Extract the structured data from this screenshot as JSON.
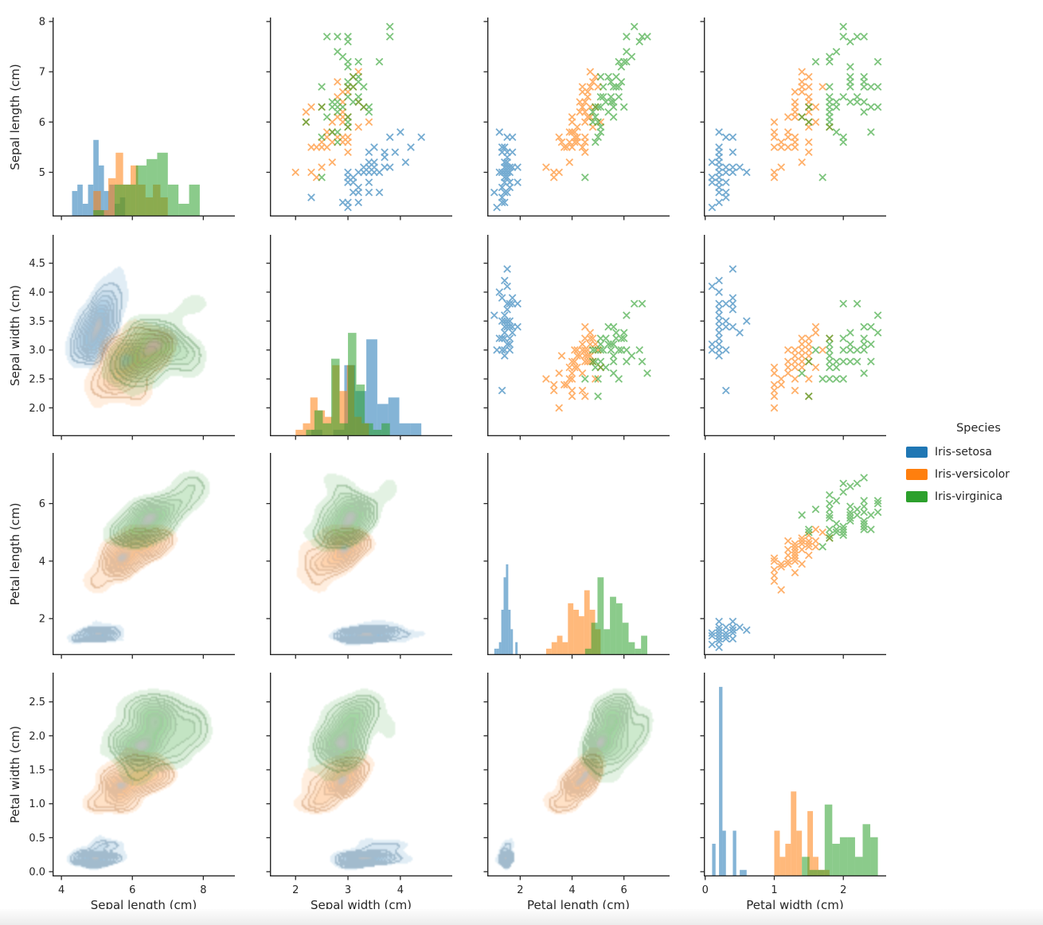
{
  "chart_data": {
    "type": "pairplot",
    "panels": {
      "diagonal": "histogram",
      "upper_triangle": "scatter",
      "lower_triangle": "kde-contours"
    },
    "marker": "x",
    "legend_title": "Species",
    "legend_position": "right-center",
    "grid": false,
    "variables": [
      {
        "key": "sepal_length",
        "label": "Sepal length (cm)",
        "x_range": [
          3.75,
          8.89
        ],
        "x_ticks": [
          4,
          6,
          8
        ],
        "x_tick_labels": [
          "4",
          "6",
          "8"
        ],
        "y_range": [
          4.12,
          8.08
        ],
        "y_ticks": [
          5,
          6,
          7,
          8
        ],
        "y_tick_labels": [
          "5",
          "6",
          "7",
          "8"
        ]
      },
      {
        "key": "sepal_width",
        "label": "Sepal width (cm)",
        "x_range": [
          1.51,
          4.99
        ],
        "x_ticks": [
          2,
          3,
          4
        ],
        "x_tick_labels": [
          "2",
          "3",
          "4"
        ],
        "y_range": [
          1.51,
          4.99
        ],
        "y_ticks": [
          2.0,
          2.5,
          3.0,
          3.5,
          4.0,
          4.5
        ],
        "y_tick_labels": [
          "2.0",
          "2.5",
          "3.0",
          "3.5",
          "4.0",
          "4.5"
        ]
      },
      {
        "key": "petal_length",
        "label": "Petal length (cm)",
        "x_range": [
          0.73,
          7.76
        ],
        "x_ticks": [
          2,
          4,
          6
        ],
        "x_tick_labels": [
          "2",
          "4",
          "6"
        ],
        "y_range": [
          0.73,
          7.76
        ],
        "y_ticks": [
          2,
          4,
          6
        ],
        "y_tick_labels": [
          "2",
          "4",
          "6"
        ]
      },
      {
        "key": "petal_width",
        "label": "Petal width (cm)",
        "x_range": [
          -0.02,
          2.62
        ],
        "x_ticks": [
          0,
          1,
          2
        ],
        "x_tick_labels": [
          "0",
          "1",
          "2"
        ],
        "y_range": [
          -0.07,
          2.93
        ],
        "y_ticks": [
          0.0,
          0.5,
          1.0,
          1.5,
          2.0,
          2.5
        ],
        "y_tick_labels": [
          "0.0",
          "0.5",
          "1.0",
          "1.5",
          "2.0",
          "2.5"
        ]
      }
    ],
    "species": [
      {
        "label": "Iris-setosa",
        "color": "#1f77b4",
        "data": {
          "sepal_length": [
            5.1,
            4.9,
            4.7,
            4.6,
            5.0,
            5.4,
            4.6,
            5.0,
            4.4,
            4.9,
            5.4,
            4.8,
            4.8,
            4.3,
            5.8,
            5.7,
            5.4,
            5.1,
            5.7,
            5.1,
            5.4,
            5.1,
            4.6,
            5.1,
            4.8,
            5.0,
            5.0,
            5.2,
            5.2,
            4.7,
            4.8,
            5.4,
            5.2,
            5.5,
            4.9,
            5.0,
            5.5,
            4.9,
            4.4,
            5.1,
            5.0,
            4.5,
            4.4,
            5.0,
            5.1,
            4.8,
            5.1,
            4.6,
            5.3,
            5.0
          ],
          "sepal_width": [
            3.5,
            3.0,
            3.2,
            3.1,
            3.6,
            3.9,
            3.4,
            3.4,
            2.9,
            3.1,
            3.7,
            3.4,
            3.0,
            3.0,
            4.0,
            4.4,
            3.9,
            3.5,
            3.8,
            3.8,
            3.4,
            3.7,
            3.6,
            3.3,
            3.4,
            3.0,
            3.4,
            3.5,
            3.4,
            3.2,
            3.1,
            3.4,
            4.1,
            4.2,
            3.1,
            3.2,
            3.5,
            3.1,
            3.0,
            3.4,
            3.5,
            2.3,
            3.2,
            3.5,
            3.8,
            3.0,
            3.8,
            3.2,
            3.7,
            3.3
          ],
          "petal_length": [
            1.4,
            1.4,
            1.3,
            1.5,
            1.4,
            1.7,
            1.4,
            1.5,
            1.4,
            1.5,
            1.5,
            1.6,
            1.4,
            1.1,
            1.2,
            1.5,
            1.3,
            1.4,
            1.7,
            1.5,
            1.7,
            1.5,
            1.0,
            1.7,
            1.9,
            1.6,
            1.6,
            1.5,
            1.4,
            1.6,
            1.6,
            1.5,
            1.5,
            1.4,
            1.5,
            1.2,
            1.3,
            1.5,
            1.3,
            1.5,
            1.3,
            1.3,
            1.3,
            1.6,
            1.9,
            1.4,
            1.6,
            1.4,
            1.5,
            1.4
          ],
          "petal_width": [
            0.2,
            0.2,
            0.2,
            0.2,
            0.2,
            0.4,
            0.3,
            0.2,
            0.2,
            0.1,
            0.2,
            0.2,
            0.1,
            0.1,
            0.2,
            0.4,
            0.4,
            0.3,
            0.3,
            0.3,
            0.2,
            0.4,
            0.2,
            0.5,
            0.2,
            0.2,
            0.4,
            0.2,
            0.2,
            0.2,
            0.2,
            0.4,
            0.1,
            0.2,
            0.2,
            0.2,
            0.2,
            0.1,
            0.2,
            0.2,
            0.3,
            0.3,
            0.2,
            0.6,
            0.4,
            0.3,
            0.2,
            0.2,
            0.2,
            0.2
          ]
        }
      },
      {
        "label": "Iris-versicolor",
        "color": "#ff7f0e",
        "data": {
          "sepal_length": [
            7.0,
            6.4,
            6.9,
            5.5,
            6.5,
            5.7,
            6.3,
            4.9,
            6.6,
            5.2,
            5.0,
            5.9,
            6.0,
            6.1,
            5.6,
            6.7,
            5.6,
            5.8,
            6.2,
            5.6,
            5.9,
            6.1,
            6.3,
            6.1,
            6.4,
            6.6,
            6.8,
            6.7,
            6.0,
            5.7,
            5.5,
            5.5,
            5.8,
            6.0,
            5.4,
            6.0,
            6.7,
            6.3,
            5.6,
            5.5,
            5.5,
            6.1,
            5.8,
            5.0,
            5.6,
            5.7,
            5.7,
            6.2,
            5.1,
            5.7
          ],
          "sepal_width": [
            3.2,
            3.2,
            3.1,
            2.3,
            2.8,
            2.8,
            3.3,
            2.4,
            2.9,
            2.7,
            2.0,
            3.0,
            2.2,
            2.9,
            2.9,
            3.1,
            3.0,
            2.7,
            2.2,
            2.5,
            3.2,
            2.8,
            2.5,
            2.8,
            2.9,
            3.0,
            2.8,
            3.0,
            2.9,
            2.6,
            2.4,
            2.4,
            2.7,
            2.7,
            3.0,
            3.4,
            3.1,
            2.3,
            3.0,
            2.5,
            2.6,
            3.0,
            2.6,
            2.3,
            2.7,
            3.0,
            2.9,
            2.9,
            2.5,
            2.8
          ],
          "petal_length": [
            4.7,
            4.5,
            4.9,
            4.0,
            4.6,
            4.5,
            4.7,
            3.3,
            4.6,
            3.9,
            3.5,
            4.2,
            4.0,
            4.7,
            3.6,
            4.4,
            4.5,
            4.1,
            4.5,
            3.9,
            4.8,
            4.0,
            4.9,
            4.7,
            4.3,
            4.4,
            4.8,
            5.0,
            4.5,
            3.5,
            3.8,
            3.7,
            3.9,
            5.1,
            4.5,
            4.5,
            4.7,
            4.4,
            4.1,
            4.0,
            4.4,
            4.6,
            4.0,
            3.3,
            4.2,
            4.2,
            4.2,
            4.3,
            3.0,
            4.1
          ],
          "petal_width": [
            1.4,
            1.5,
            1.5,
            1.3,
            1.5,
            1.3,
            1.6,
            1.0,
            1.3,
            1.4,
            1.0,
            1.5,
            1.0,
            1.4,
            1.3,
            1.4,
            1.5,
            1.0,
            1.5,
            1.1,
            1.8,
            1.3,
            1.5,
            1.2,
            1.3,
            1.4,
            1.4,
            1.7,
            1.5,
            1.0,
            1.1,
            1.0,
            1.2,
            1.6,
            1.5,
            1.6,
            1.5,
            1.3,
            1.3,
            1.3,
            1.2,
            1.4,
            1.2,
            1.0,
            1.3,
            1.2,
            1.3,
            1.3,
            1.1,
            1.3
          ]
        }
      },
      {
        "label": "Iris-virginica",
        "color": "#2ca02c",
        "data": {
          "sepal_length": [
            6.3,
            5.8,
            7.1,
            6.3,
            6.5,
            7.6,
            4.9,
            7.3,
            6.7,
            7.2,
            6.5,
            6.4,
            6.8,
            5.7,
            5.8,
            6.4,
            6.5,
            7.7,
            7.7,
            6.0,
            6.9,
            5.6,
            7.7,
            6.3,
            6.7,
            7.2,
            6.2,
            6.1,
            6.4,
            7.2,
            7.4,
            7.9,
            6.4,
            6.3,
            6.1,
            7.7,
            6.3,
            6.4,
            6.0,
            6.9,
            6.7,
            6.9,
            5.8,
            6.8,
            6.7,
            6.7,
            6.3,
            6.5,
            6.2,
            5.9
          ],
          "sepal_width": [
            3.3,
            2.7,
            3.0,
            2.9,
            3.0,
            3.0,
            2.5,
            2.9,
            2.5,
            3.6,
            3.2,
            2.7,
            3.0,
            2.5,
            2.8,
            3.2,
            3.0,
            3.8,
            2.6,
            2.2,
            3.2,
            2.8,
            2.8,
            2.7,
            3.3,
            3.2,
            2.8,
            3.0,
            2.8,
            3.0,
            2.8,
            3.8,
            2.8,
            2.8,
            2.6,
            3.0,
            3.4,
            3.1,
            3.0,
            3.1,
            3.1,
            3.1,
            2.7,
            3.2,
            3.3,
            3.0,
            2.5,
            3.0,
            3.4,
            3.0
          ],
          "petal_length": [
            6.0,
            5.1,
            5.9,
            5.6,
            5.8,
            6.6,
            4.5,
            6.3,
            5.8,
            6.1,
            5.1,
            5.3,
            5.5,
            5.0,
            5.1,
            5.3,
            5.5,
            6.7,
            6.9,
            5.0,
            5.7,
            4.9,
            6.7,
            4.9,
            5.7,
            6.0,
            4.8,
            4.9,
            5.6,
            5.8,
            6.1,
            6.4,
            5.6,
            5.1,
            5.6,
            6.1,
            5.6,
            5.5,
            4.8,
            5.4,
            5.6,
            5.1,
            5.1,
            5.9,
            5.7,
            5.2,
            5.0,
            5.2,
            5.4,
            5.1
          ],
          "petal_width": [
            2.5,
            1.9,
            2.1,
            1.8,
            2.2,
            2.1,
            1.7,
            1.8,
            1.8,
            2.5,
            2.0,
            1.9,
            2.1,
            2.0,
            2.4,
            2.3,
            1.8,
            2.2,
            2.3,
            1.5,
            2.3,
            2.0,
            2.0,
            1.8,
            2.1,
            1.8,
            1.8,
            1.8,
            2.1,
            1.6,
            1.9,
            2.0,
            2.2,
            1.5,
            1.4,
            2.3,
            2.4,
            1.8,
            1.8,
            2.1,
            2.4,
            2.3,
            1.9,
            2.3,
            2.5,
            2.3,
            1.9,
            2.0,
            2.3,
            1.8
          ]
        }
      }
    ]
  }
}
